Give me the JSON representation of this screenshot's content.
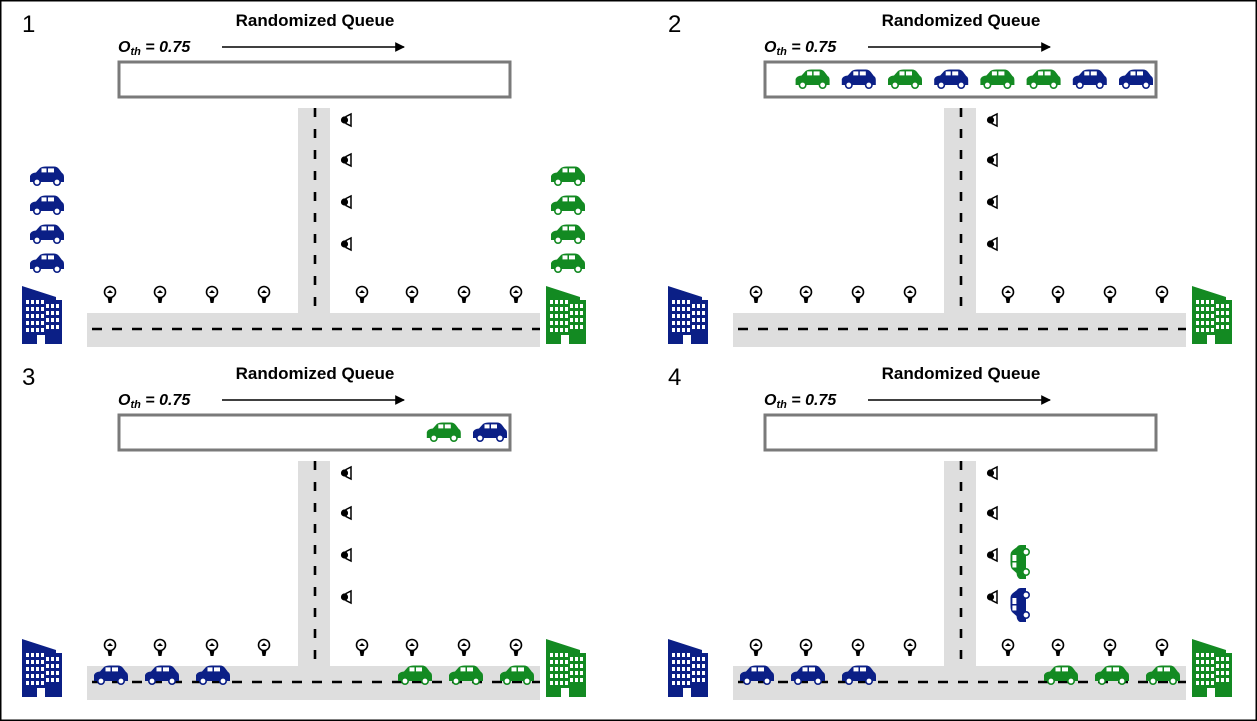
{
  "colors": {
    "blue": "#0b1f86",
    "green": "#138a22",
    "road": "#dedede",
    "queue_border": "#7a7a7a",
    "frame": "#000000"
  },
  "panels": [
    {
      "number": "1",
      "queue_title": "Randomized Queue",
      "threshold_symbol": "O",
      "threshold_subscript": "th",
      "threshold_value": " = 0.75",
      "queue_cars": [],
      "waiting_blue": 4,
      "waiting_green": 4,
      "parked_left": [],
      "parked_right": [],
      "parked_vertical": []
    },
    {
      "number": "2",
      "queue_title": "Randomized Queue",
      "threshold_symbol": "O",
      "threshold_subscript": "th",
      "threshold_value": " = 0.75",
      "queue_cars": [
        "green",
        "blue",
        "green",
        "blue",
        "green",
        "green",
        "blue",
        "blue"
      ],
      "waiting_blue": 0,
      "waiting_green": 0,
      "parked_left": [],
      "parked_right": [],
      "parked_vertical": []
    },
    {
      "number": "3",
      "queue_title": "Randomized Queue",
      "threshold_symbol": "O",
      "threshold_subscript": "th",
      "threshold_value": " = 0.75",
      "queue_cars": [
        "green",
        "blue"
      ],
      "waiting_blue": 0,
      "waiting_green": 0,
      "parked_left": [
        "blue",
        "blue",
        "blue"
      ],
      "parked_right": [
        "green",
        "green",
        "green"
      ],
      "parked_vertical": []
    },
    {
      "number": "4",
      "queue_title": "Randomized Queue",
      "threshold_symbol": "O",
      "threshold_subscript": "th",
      "threshold_value": " = 0.75",
      "queue_cars": [],
      "waiting_blue": 0,
      "waiting_green": 0,
      "parked_left": [
        "blue",
        "blue",
        "blue"
      ],
      "parked_right": [
        "green",
        "green",
        "green"
      ],
      "parked_vertical": [
        "green",
        "blue"
      ]
    }
  ]
}
